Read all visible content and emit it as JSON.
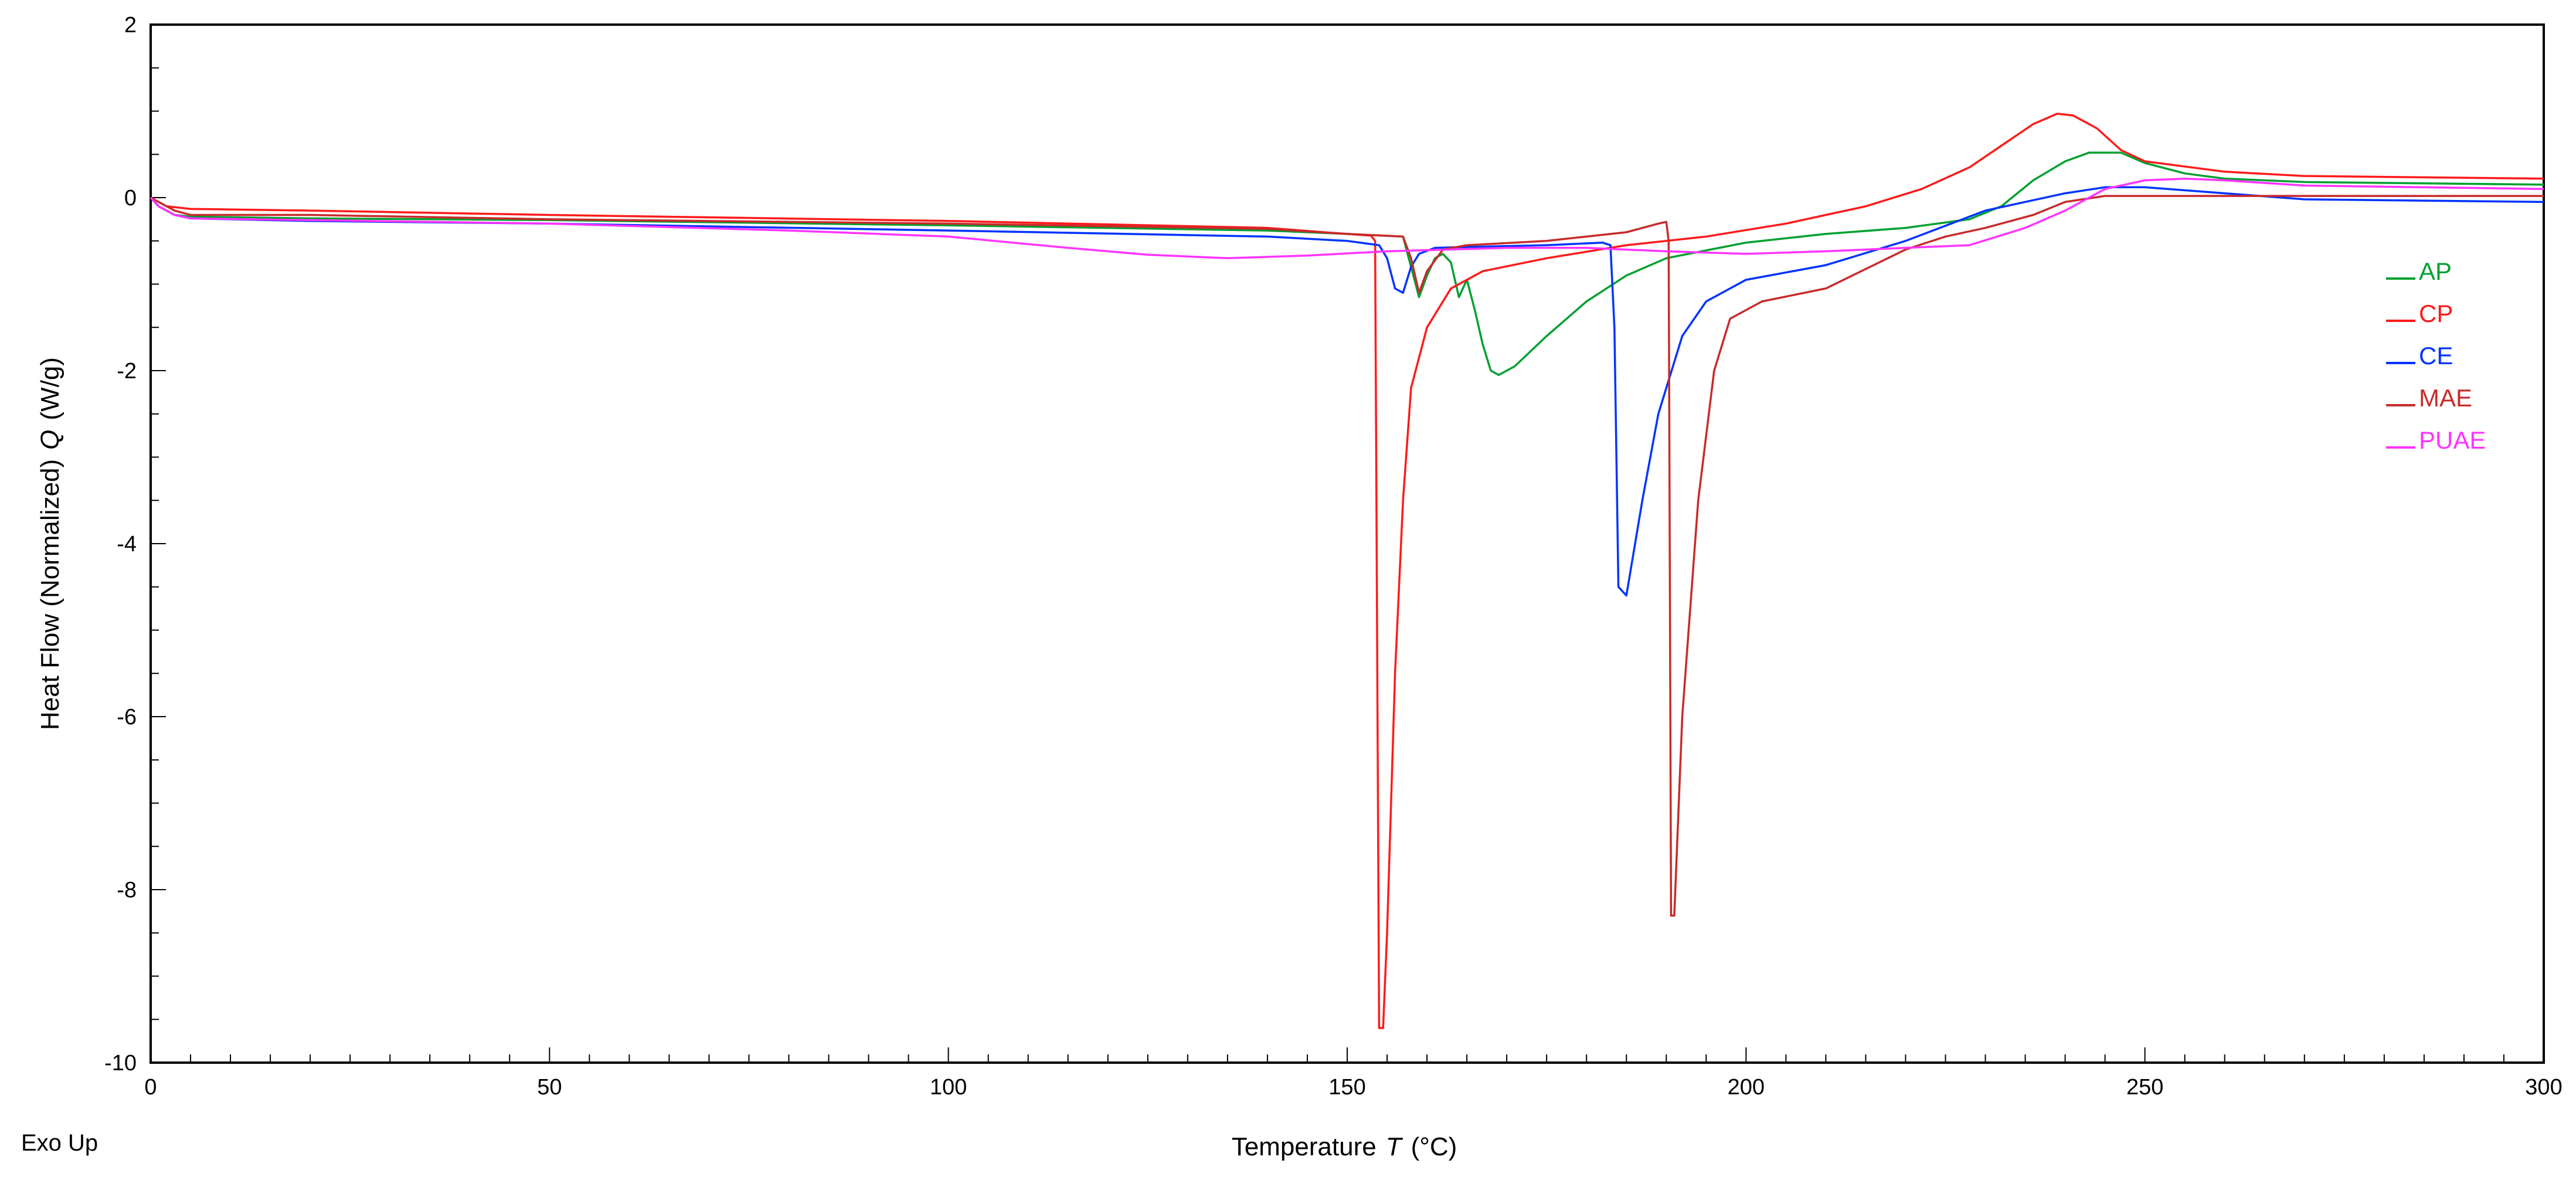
{
  "chart_data": {
    "type": "line",
    "title": "",
    "xlabel_main": "Temperature",
    "xlabel_symbol": "T",
    "xlabel_unit": "(°C)",
    "ylabel_main": "Heat Flow (Normalized)",
    "ylabel_symbol": "Q",
    "ylabel_unit": "(W/g)",
    "footer_note": "Exo Up",
    "xlim": [
      0,
      300
    ],
    "ylim": [
      -10,
      2
    ],
    "x_ticks": [
      0,
      50,
      100,
      150,
      200,
      250,
      300
    ],
    "x_tick_labels": [
      "0",
      "50",
      "100",
      "150",
      "200",
      "250",
      "300"
    ],
    "y_ticks": [
      2,
      0,
      -2,
      -4,
      -6,
      -8,
      -10
    ],
    "y_tick_labels": [
      "2",
      "0",
      "-2",
      "-4",
      "-6",
      "-8",
      "-10"
    ],
    "grid": false,
    "legend_position": "right",
    "series": [
      {
        "name": "AP",
        "color": "#00a030",
        "points": [
          [
            0,
            0
          ],
          [
            1,
            -0.1
          ],
          [
            3,
            -0.2
          ],
          [
            5,
            -0.22
          ],
          [
            20,
            -0.24
          ],
          [
            50,
            -0.26
          ],
          [
            100,
            -0.32
          ],
          [
            140,
            -0.38
          ],
          [
            150,
            -0.42
          ],
          [
            157,
            -0.45
          ],
          [
            158,
            -0.8
          ],
          [
            159,
            -1.15
          ],
          [
            160,
            -0.9
          ],
          [
            161,
            -0.7
          ],
          [
            162,
            -0.65
          ],
          [
            163,
            -0.75
          ],
          [
            164,
            -1.15
          ],
          [
            165,
            -0.95
          ],
          [
            166,
            -1.3
          ],
          [
            167,
            -1.7
          ],
          [
            168,
            -2.0
          ],
          [
            169,
            -2.05
          ],
          [
            171,
            -1.95
          ],
          [
            175,
            -1.6
          ],
          [
            180,
            -1.2
          ],
          [
            185,
            -0.9
          ],
          [
            190,
            -0.7
          ],
          [
            200,
            -0.52
          ],
          [
            210,
            -0.42
          ],
          [
            220,
            -0.35
          ],
          [
            228,
            -0.25
          ],
          [
            232,
            -0.1
          ],
          [
            236,
            0.2
          ],
          [
            240,
            0.42
          ],
          [
            243,
            0.52
          ],
          [
            247,
            0.52
          ],
          [
            250,
            0.4
          ],
          [
            255,
            0.28
          ],
          [
            260,
            0.22
          ],
          [
            270,
            0.18
          ],
          [
            300,
            0.15
          ]
        ]
      },
      {
        "name": "CP",
        "color": "#ff1a1a",
        "points": [
          [
            0,
            0
          ],
          [
            1,
            -0.05
          ],
          [
            2,
            -0.1
          ],
          [
            5,
            -0.13
          ],
          [
            20,
            -0.15
          ],
          [
            50,
            -0.2
          ],
          [
            100,
            -0.27
          ],
          [
            140,
            -0.35
          ],
          [
            150,
            -0.42
          ],
          [
            153,
            -0.44
          ],
          [
            153.5,
            -0.5
          ],
          [
            154,
            -9.6
          ],
          [
            154.5,
            -9.6
          ],
          [
            155,
            -8.5
          ],
          [
            156,
            -5.5
          ],
          [
            157,
            -3.5
          ],
          [
            158,
            -2.2
          ],
          [
            160,
            -1.5
          ],
          [
            163,
            -1.05
          ],
          [
            167,
            -0.85
          ],
          [
            175,
            -0.7
          ],
          [
            185,
            -0.55
          ],
          [
            195,
            -0.45
          ],
          [
            205,
            -0.3
          ],
          [
            215,
            -0.1
          ],
          [
            222,
            0.1
          ],
          [
            228,
            0.35
          ],
          [
            232,
            0.6
          ],
          [
            236,
            0.85
          ],
          [
            239,
            0.97
          ],
          [
            241,
            0.95
          ],
          [
            244,
            0.8
          ],
          [
            247,
            0.55
          ],
          [
            250,
            0.42
          ],
          [
            260,
            0.3
          ],
          [
            270,
            0.25
          ],
          [
            300,
            0.22
          ]
        ]
      },
      {
        "name": "CE",
        "color": "#0033ff",
        "points": [
          [
            0,
            0
          ],
          [
            1,
            -0.1
          ],
          [
            3,
            -0.2
          ],
          [
            5,
            -0.24
          ],
          [
            20,
            -0.27
          ],
          [
            50,
            -0.3
          ],
          [
            100,
            -0.38
          ],
          [
            140,
            -0.45
          ],
          [
            150,
            -0.5
          ],
          [
            154,
            -0.55
          ],
          [
            155,
            -0.7
          ],
          [
            156,
            -1.05
          ],
          [
            157,
            -1.1
          ],
          [
            158,
            -0.8
          ],
          [
            159,
            -0.65
          ],
          [
            161,
            -0.58
          ],
          [
            165,
            -0.57
          ],
          [
            175,
            -0.55
          ],
          [
            182,
            -0.52
          ],
          [
            183,
            -0.55
          ],
          [
            183.5,
            -1.5
          ],
          [
            184,
            -4.5
          ],
          [
            185,
            -4.6
          ],
          [
            187,
            -3.5
          ],
          [
            189,
            -2.5
          ],
          [
            192,
            -1.6
          ],
          [
            195,
            -1.2
          ],
          [
            200,
            -0.95
          ],
          [
            210,
            -0.78
          ],
          [
            220,
            -0.5
          ],
          [
            230,
            -0.15
          ],
          [
            240,
            0.05
          ],
          [
            245,
            0.12
          ],
          [
            250,
            0.12
          ],
          [
            260,
            0.05
          ],
          [
            270,
            -0.02
          ],
          [
            300,
            -0.05
          ]
        ]
      },
      {
        "name": "MAE",
        "color": "#c82a2a",
        "points": [
          [
            0,
            0
          ],
          [
            1,
            -0.05
          ],
          [
            3,
            -0.15
          ],
          [
            5,
            -0.2
          ],
          [
            20,
            -0.2
          ],
          [
            50,
            -0.25
          ],
          [
            100,
            -0.3
          ],
          [
            140,
            -0.36
          ],
          [
            150,
            -0.42
          ],
          [
            157,
            -0.45
          ],
          [
            158,
            -0.7
          ],
          [
            159,
            -1.1
          ],
          [
            160,
            -0.85
          ],
          [
            162,
            -0.6
          ],
          [
            165,
            -0.55
          ],
          [
            175,
            -0.5
          ],
          [
            185,
            -0.4
          ],
          [
            189,
            -0.3
          ],
          [
            190,
            -0.28
          ],
          [
            190.3,
            -0.5
          ],
          [
            190.6,
            -8.3
          ],
          [
            191,
            -8.3
          ],
          [
            192,
            -6
          ],
          [
            194,
            -3.5
          ],
          [
            196,
            -2
          ],
          [
            198,
            -1.4
          ],
          [
            202,
            -1.2
          ],
          [
            210,
            -1.05
          ],
          [
            220,
            -0.6
          ],
          [
            225,
            -0.45
          ],
          [
            230,
            -0.35
          ],
          [
            236,
            -0.2
          ],
          [
            240,
            -0.05
          ],
          [
            245,
            0.02
          ],
          [
            260,
            0.02
          ],
          [
            300,
            0.02
          ]
        ]
      },
      {
        "name": "PUAE",
        "color": "#ff33ff",
        "points": [
          [
            0,
            0
          ],
          [
            1,
            -0.1
          ],
          [
            3,
            -0.2
          ],
          [
            5,
            -0.24
          ],
          [
            20,
            -0.26
          ],
          [
            50,
            -0.3
          ],
          [
            80,
            -0.38
          ],
          [
            100,
            -0.45
          ],
          [
            115,
            -0.58
          ],
          [
            125,
            -0.66
          ],
          [
            135,
            -0.7
          ],
          [
            145,
            -0.67
          ],
          [
            155,
            -0.62
          ],
          [
            170,
            -0.58
          ],
          [
            180,
            -0.58
          ],
          [
            190,
            -0.62
          ],
          [
            200,
            -0.65
          ],
          [
            210,
            -0.62
          ],
          [
            220,
            -0.58
          ],
          [
            228,
            -0.55
          ],
          [
            235,
            -0.35
          ],
          [
            240,
            -0.15
          ],
          [
            245,
            0.1
          ],
          [
            250,
            0.2
          ],
          [
            255,
            0.22
          ],
          [
            260,
            0.2
          ],
          [
            270,
            0.14
          ],
          [
            300,
            0.1
          ]
        ]
      }
    ]
  }
}
